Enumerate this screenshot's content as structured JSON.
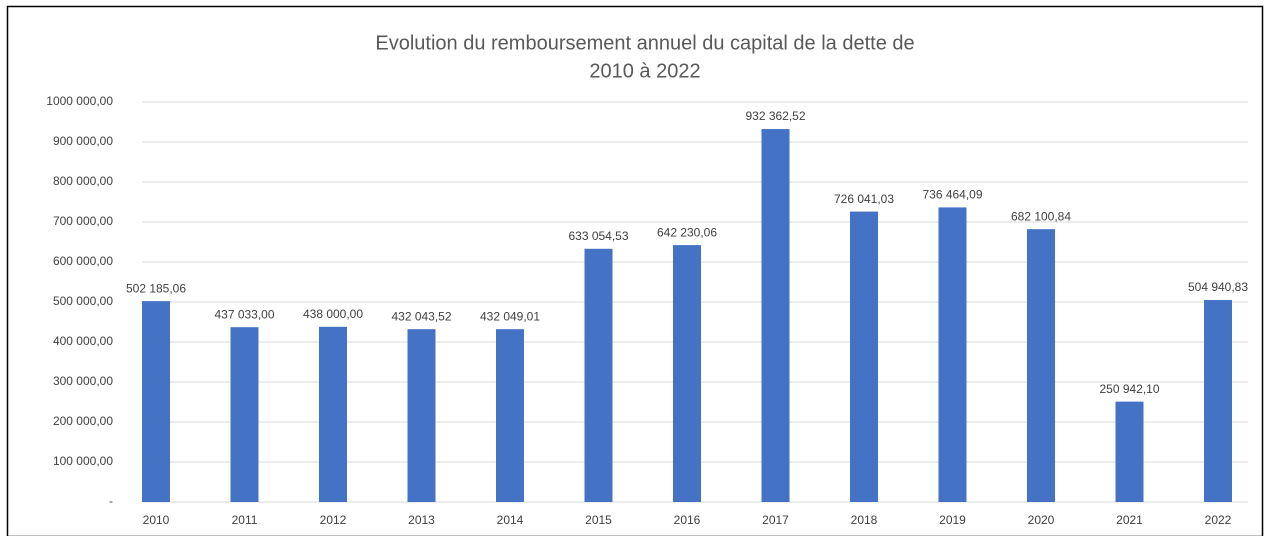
{
  "chart_data": {
    "type": "bar",
    "title": [
      "Evolution du remboursement annuel du capital de la dette de",
      "2010 à 2022"
    ],
    "categories": [
      "2010",
      "2011",
      "2012",
      "2013",
      "2014",
      "2015",
      "2016",
      "2017",
      "2018",
      "2019",
      "2020",
      "2021",
      "2022"
    ],
    "values": [
      502185.06,
      437033.0,
      438000.0,
      432043.52,
      432049.01,
      633054.53,
      642230.06,
      932362.52,
      726041.03,
      736464.09,
      682100.84,
      250942.1,
      504940.83
    ],
    "value_labels": [
      "502 185,06",
      "437 033,00",
      "438 000,00",
      "432 043,52",
      "432 049,01",
      "633 054,53",
      "642 230,06",
      "932 362,52",
      "726 041,03",
      "736 464,09",
      "682 100,84",
      "250 942,10",
      "504 940,83"
    ],
    "color": "#4472c4",
    "ylim": [
      0,
      1000000
    ],
    "yticks": [
      {
        "value": 0,
        "label": "-"
      },
      {
        "value": 100000,
        "label": "100 000,00"
      },
      {
        "value": 200000,
        "label": "200 000,00"
      },
      {
        "value": 300000,
        "label": "300 000,00"
      },
      {
        "value": 400000,
        "label": "400 000,00"
      },
      {
        "value": 500000,
        "label": "500 000,00"
      },
      {
        "value": 600000,
        "label": "600 000,00"
      },
      {
        "value": 700000,
        "label": "700 000,00"
      },
      {
        "value": 800000,
        "label": "800 000,00"
      },
      {
        "value": 900000,
        "label": "900 000,00"
      },
      {
        "value": 1000000,
        "label": "1000 000,00"
      }
    ],
    "grid": true
  }
}
